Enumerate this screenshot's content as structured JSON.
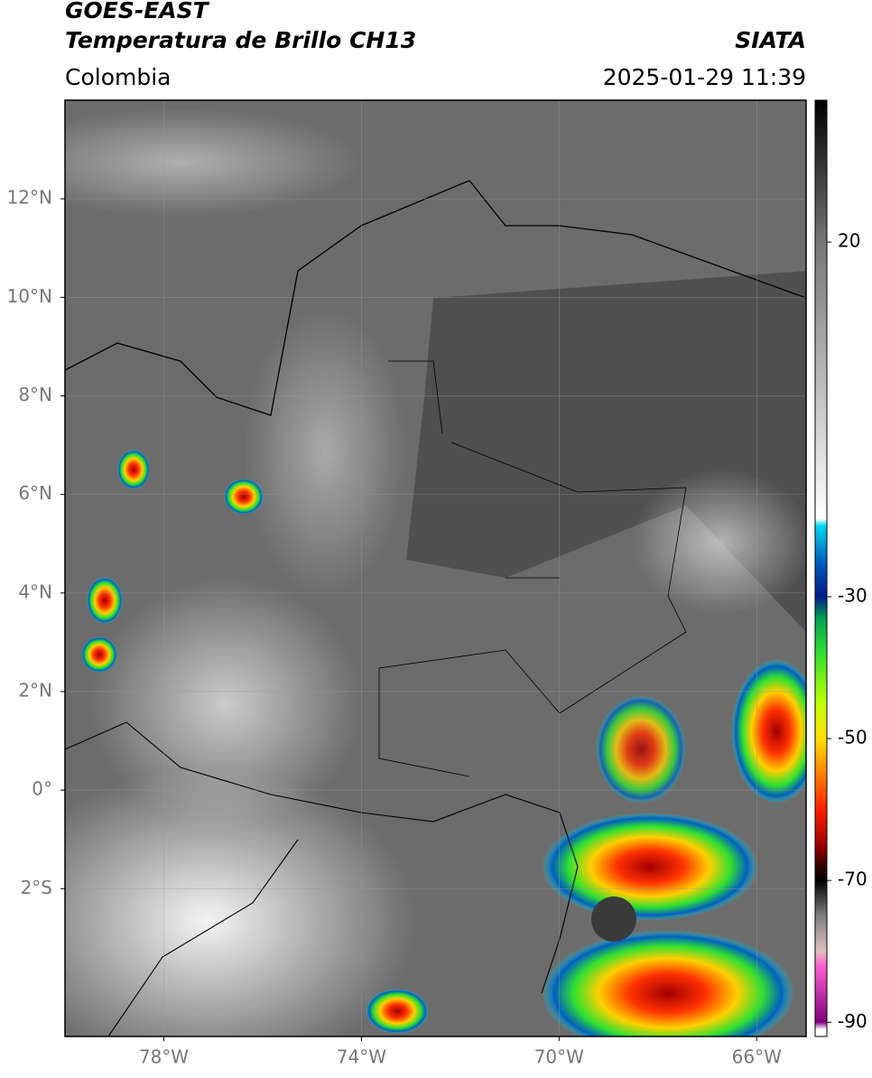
{
  "header": {
    "title": "GOES-EAST",
    "subtitle": "Temperatura de Brillo CH13",
    "region": "Colombia",
    "source": "SIATA",
    "timestamp": "2025-01-29 11:39"
  },
  "map": {
    "xlim": [
      -80,
      -65
    ],
    "ylim": [
      -5,
      14
    ],
    "xticks": [
      {
        "value": -78,
        "label": "78°W"
      },
      {
        "value": -74,
        "label": "74°W"
      },
      {
        "value": -70,
        "label": "70°W"
      },
      {
        "value": -66,
        "label": "66°W"
      }
    ],
    "yticks": [
      {
        "value": 12,
        "label": "12°N"
      },
      {
        "value": 10,
        "label": "10°N"
      },
      {
        "value": 8,
        "label": "8°N"
      },
      {
        "value": 6,
        "label": "6°N"
      },
      {
        "value": 4,
        "label": "4°N"
      },
      {
        "value": 2,
        "label": "2°N"
      },
      {
        "value": 0,
        "label": "0°"
      },
      {
        "value": -2,
        "label": "2°S"
      }
    ],
    "grid": true
  },
  "colorbar": {
    "clim": [
      -92,
      40
    ],
    "ticks": [
      20,
      -30,
      -50,
      -70,
      -90
    ],
    "colormap": [
      {
        "value": 40,
        "color": "#000000"
      },
      {
        "value": 20,
        "color": "#767676"
      },
      {
        "value": -19,
        "color": "#ffffff"
      },
      {
        "value": -20,
        "color": "#00d8f0"
      },
      {
        "value": -25,
        "color": "#0060c0"
      },
      {
        "value": -30,
        "color": "#001a8a"
      },
      {
        "value": -33,
        "color": "#00a050"
      },
      {
        "value": -38,
        "color": "#30e030"
      },
      {
        "value": -45,
        "color": "#c0ff00"
      },
      {
        "value": -50,
        "color": "#ffe000"
      },
      {
        "value": -55,
        "color": "#ff8000"
      },
      {
        "value": -60,
        "color": "#ff2000"
      },
      {
        "value": -65,
        "color": "#a00000"
      },
      {
        "value": -68,
        "color": "#300000"
      },
      {
        "value": -70,
        "color": "#000000"
      },
      {
        "value": -75,
        "color": "#808080"
      },
      {
        "value": -80,
        "color": "#e0c0c0"
      },
      {
        "value": -82,
        "color": "#ff60d0"
      },
      {
        "value": -90,
        "color": "#800080"
      },
      {
        "value": -91,
        "color": "#ffffff"
      }
    ]
  }
}
